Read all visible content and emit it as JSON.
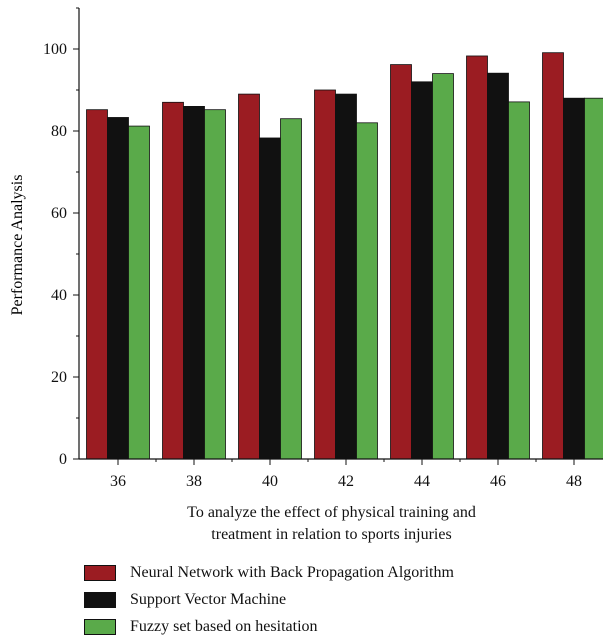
{
  "chart_data": {
    "type": "bar",
    "categories": [
      "36",
      "38",
      "40",
      "42",
      "44",
      "46",
      "48"
    ],
    "series": [
      {
        "name": "Neural Network with Back Propagation Algorithm",
        "color": "#9b1c22",
        "values": [
          85.2,
          87.0,
          89.0,
          90.0,
          96.2,
          98.3,
          99.1
        ]
      },
      {
        "name": "Support Vector Machine",
        "color": "#111111",
        "values": [
          83.3,
          86.0,
          78.3,
          89.0,
          92.0,
          94.1,
          88.0
        ]
      },
      {
        "name": "Fuzzy set based on hesitation",
        "color": "#5aaa4a",
        "values": [
          81.2,
          85.2,
          83.0,
          82.0,
          94.0,
          87.1,
          88.0
        ]
      }
    ],
    "xlabel": "To analyze the effect of physical training and\ntreatment in relation to sports injuries",
    "ylabel": "Performance Analysis",
    "yticks": [
      "0",
      "20",
      "40",
      "60",
      "80",
      "100"
    ],
    "ylim": [
      0,
      110
    ],
    "grid": false,
    "legend": "bottom"
  }
}
